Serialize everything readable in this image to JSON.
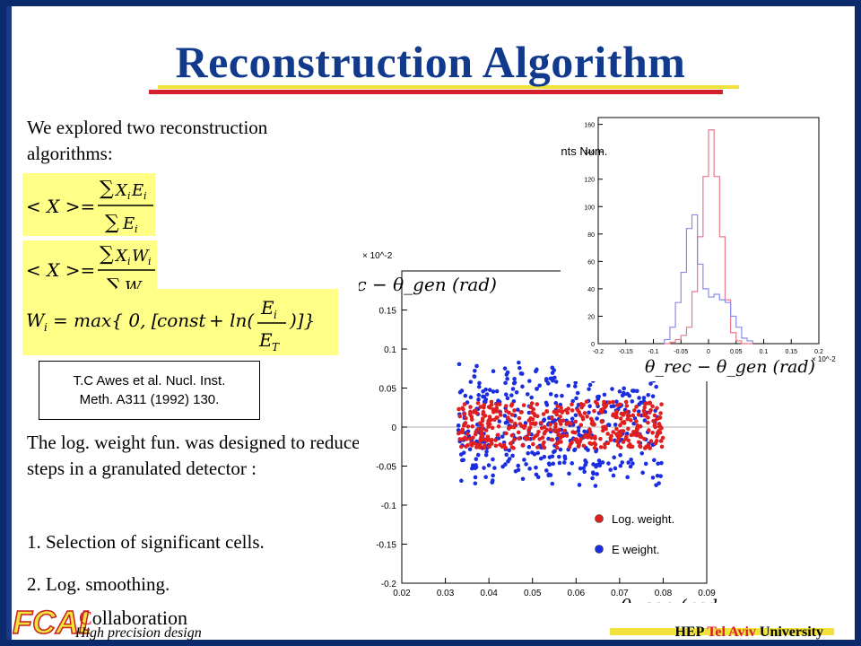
{
  "slide": {
    "title": "Reconstruction Algorithm",
    "intro": "We explored two reconstruction algorithms:",
    "citation_line1": "T.C Awes et al. Nucl. Inst.",
    "citation_line2": "Meth. A311 (1992) 130.",
    "description": "The log. weight fun. was designed to reduce steps in a granulated detector :",
    "item1": "1. Selection of significant cells.",
    "item2": "2. Log. smoothing."
  },
  "formulas": {
    "f1": "<X> = ∑ X_i E_i / ∑ E_i",
    "f2": "<X> = ∑ X_i W_i / ∑ W_i",
    "f3": "W_i = max{ 0, [const + ln( E_i / E_T )] }"
  },
  "footer": {
    "logo_text": "FCAL",
    "collab_first": "C",
    "collab_rest": "ollaboration",
    "subtitle": "High precision design",
    "uni_hep": "HEP",
    "uni_ta": "Tel Aviv",
    "uni_rest": "University"
  },
  "colors": {
    "title": "#123a8c",
    "underline_red": "#d61f2c",
    "underline_yellow": "#f2e33c",
    "formula_bg": "#ffff88",
    "log_weight": "#e02020",
    "e_weight": "#1a2ee0"
  },
  "chart_data": [
    {
      "type": "scatter",
      "title": "",
      "xlabel": "θ_gen (rad)",
      "ylabel": "θ_rec − θ_gen (rad)",
      "y_multiplier": "× 10^-2",
      "xlim": [
        0.02,
        0.09
      ],
      "ylim": [
        -0.2,
        0.2
      ],
      "xticks": [
        "0.02",
        "0.03",
        "0.04",
        "0.05",
        "0.06",
        "0.07",
        "0.08",
        "0.09"
      ],
      "yticks": [
        "-0.2",
        "-0.15",
        "-0.1",
        "-0.05",
        "0",
        "0.05",
        "0.1",
        "0.15"
      ],
      "legend_position": "bottom-right",
      "series": [
        {
          "name": "Log. weight.",
          "color": "#e02020",
          "x_range": [
            0.033,
            0.08
          ],
          "y_spread": 0.03
        },
        {
          "name": "E weight.",
          "color": "#1a2ee0",
          "x_range": [
            0.033,
            0.08
          ],
          "y_spread": 0.08
        }
      ]
    },
    {
      "type": "line",
      "title": "",
      "xlabel": "θ_rec − θ_gen (rad)",
      "ylabel": "Events Num.",
      "x_multiplier": "× 10^-2",
      "xlim": [
        -0.2,
        0.2
      ],
      "ylim": [
        0,
        165
      ],
      "xticks": [
        "-0.2",
        "-0.15",
        "-0.1",
        "-0.05",
        "0",
        "0.05",
        "0.1",
        "0.15",
        "0.2"
      ],
      "yticks": [
        "0",
        "20",
        "40",
        "60",
        "80",
        "100",
        "120",
        "140",
        "160"
      ],
      "bin_width": 0.01,
      "x_start": -0.08,
      "series": [
        {
          "name": "Log. weight.",
          "color": "#e8788a",
          "values": [
            0,
            1,
            3,
            6,
            12,
            38,
            78,
            122,
            156,
            122,
            78,
            32,
            8,
            2,
            0,
            0
          ]
        },
        {
          "name": "E weight.",
          "color": "#8a8ae8",
          "values": [
            3,
            12,
            30,
            52,
            84,
            94,
            58,
            40,
            34,
            36,
            32,
            30,
            20,
            12,
            4,
            2
          ]
        }
      ]
    }
  ]
}
